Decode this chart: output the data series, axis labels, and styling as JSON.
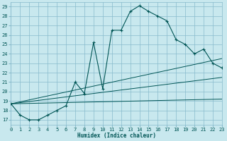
{
  "xlabel": "Humidex (Indice chaleur)",
  "bg_color": "#c8e8ee",
  "grid_color": "#88bbcc",
  "line_color": "#005555",
  "xlim": [
    0,
    23
  ],
  "ylim": [
    16.5,
    29.5
  ],
  "yticks": [
    17,
    18,
    19,
    20,
    21,
    22,
    23,
    24,
    25,
    26,
    27,
    28,
    29
  ],
  "xticks": [
    0,
    1,
    2,
    3,
    4,
    5,
    6,
    7,
    8,
    9,
    10,
    11,
    12,
    13,
    14,
    15,
    16,
    17,
    18,
    19,
    20,
    21,
    22,
    23
  ],
  "main_x": [
    0,
    1,
    2,
    3,
    4,
    5,
    6,
    7,
    8,
    9,
    10,
    11,
    12,
    13,
    14,
    15,
    16,
    17,
    18,
    19,
    20,
    21,
    22,
    23
  ],
  "main_y": [
    18.7,
    17.5,
    17.0,
    17.0,
    17.5,
    18.0,
    18.5,
    21.0,
    19.8,
    25.2,
    20.3,
    26.5,
    26.5,
    28.5,
    29.1,
    28.5,
    28.0,
    27.5,
    25.5,
    25.0,
    24.0,
    24.5,
    23.0,
    22.5
  ],
  "line2_x": [
    0,
    23
  ],
  "line2_y": [
    18.7,
    23.5
  ],
  "line3_x": [
    0,
    23
  ],
  "line3_y": [
    18.7,
    21.5
  ],
  "line4_x": [
    0,
    23
  ],
  "line4_y": [
    18.7,
    19.2
  ]
}
